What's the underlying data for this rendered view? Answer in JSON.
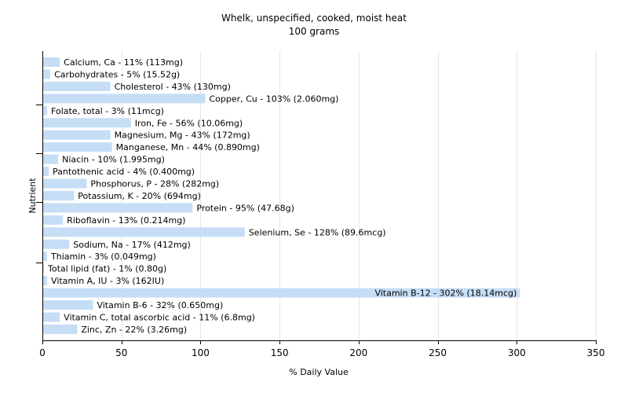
{
  "chart_data": {
    "type": "bar",
    "orientation": "horizontal",
    "title": "Whelk, unspecified, cooked, moist heat",
    "subtitle": "100 grams",
    "xlabel": "% Daily Value",
    "ylabel": "Nutrient",
    "xlim": [
      0,
      350
    ],
    "xticks": [
      0,
      50,
      100,
      150,
      200,
      250,
      300,
      350
    ],
    "grid": true,
    "bar_color": "#c6ddf6",
    "gridline_color": "#e6e6e6",
    "categories": [
      "Calcium, Ca",
      "Carbohydrates",
      "Cholesterol",
      "Copper, Cu",
      "Folate, total",
      "Iron, Fe",
      "Magnesium, Mg",
      "Manganese, Mn",
      "Niacin",
      "Pantothenic acid",
      "Phosphorus, P",
      "Potassium, K",
      "Protein",
      "Riboflavin",
      "Selenium, Se",
      "Sodium, Na",
      "Thiamin",
      "Total lipid (fat)",
      "Vitamin A, IU",
      "Vitamin B-12",
      "Vitamin B-6",
      "Vitamin C, total ascorbic acid",
      "Zinc, Zn"
    ],
    "values": [
      11,
      5,
      43,
      103,
      3,
      56,
      43,
      44,
      10,
      4,
      28,
      20,
      95,
      13,
      128,
      17,
      3,
      1,
      3,
      302,
      32,
      11,
      22
    ],
    "labels": [
      "Calcium, Ca - 11% (113mg)",
      "Carbohydrates - 5% (15.52g)",
      "Cholesterol - 43% (130mg)",
      "Copper, Cu - 103% (2.060mg)",
      "Folate, total - 3% (11mcg)",
      "Iron, Fe - 56% (10.06mg)",
      "Magnesium, Mg - 43% (172mg)",
      "Manganese, Mn - 44% (0.890mg)",
      "Niacin - 10% (1.995mg)",
      "Pantothenic acid - 4% (0.400mg)",
      "Phosphorus, P - 28% (282mg)",
      "Potassium, K - 20% (694mg)",
      "Protein - 95% (47.68g)",
      "Riboflavin - 13% (0.214mg)",
      "Selenium, Se - 128% (89.6mcg)",
      "Sodium, Na - 17% (412mg)",
      "Thiamin - 3% (0.049mg)",
      "Total lipid (fat) - 1% (0.80g)",
      "Vitamin A, IU - 3% (162IU)",
      "Vitamin B-12 - 302% (18.14mcg)",
      "Vitamin B-6 - 32% (0.650mg)",
      "Vitamin C, total ascorbic acid - 11% (6.8mg)",
      "Zinc, Zn - 22% (3.26mg)"
    ]
  }
}
